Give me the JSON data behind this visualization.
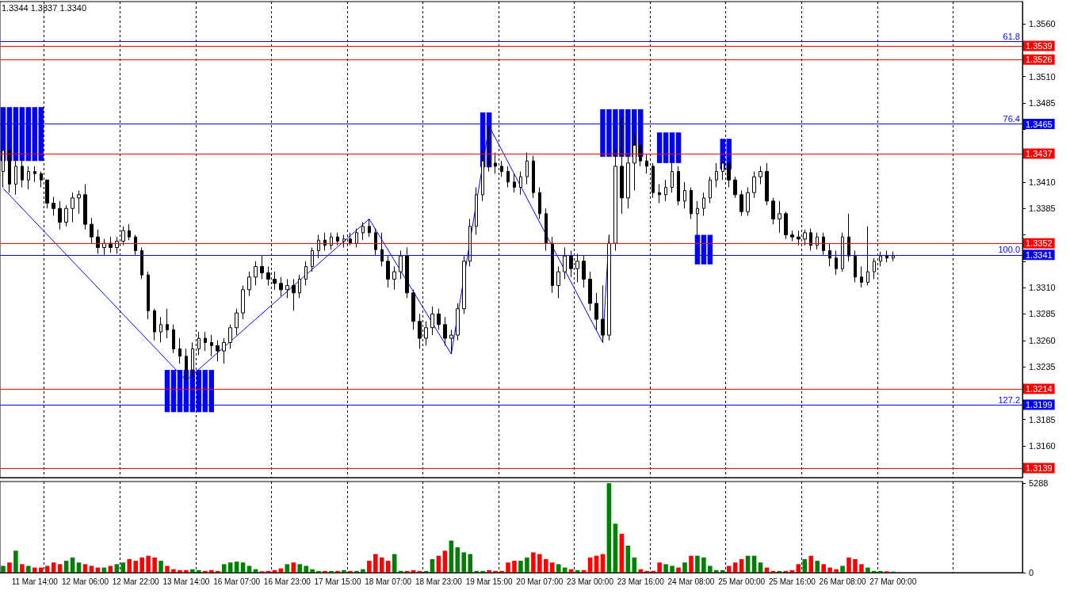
{
  "chart_data": [
    {
      "type": "candlestick",
      "categories": [
        null,
        null,
        null,
        null,
        null,
        null,
        null,
        null,
        null,
        null,
        null,
        null,
        null,
        null,
        null,
        null,
        null,
        null,
        null,
        null,
        null,
        null,
        null,
        null,
        null,
        null,
        null,
        null,
        null,
        null,
        null,
        null,
        null,
        null,
        null,
        null,
        null,
        null,
        null,
        null,
        null,
        null,
        null,
        null,
        null,
        null,
        null,
        null,
        null,
        null,
        null,
        null,
        null,
        null,
        null,
        null,
        null,
        null,
        null,
        null,
        null,
        null,
        null,
        null,
        null,
        null,
        null,
        null,
        null,
        null,
        null,
        null,
        null,
        null,
        null,
        null,
        null,
        null,
        null,
        null,
        null,
        null,
        null,
        null,
        null,
        null,
        null,
        null,
        null,
        null,
        null,
        null,
        null,
        null,
        null,
        null,
        null,
        null,
        null,
        null,
        null,
        null,
        null,
        null,
        null,
        null,
        null,
        null,
        null,
        null,
        null,
        null,
        null,
        null,
        null,
        null,
        null,
        null,
        null,
        null,
        null,
        null,
        null,
        null,
        null,
        null,
        null,
        null,
        null,
        null,
        null,
        null,
        null,
        null,
        null,
        null,
        null,
        null,
        null,
        null,
        null,
        null,
        null,
        null,
        null,
        null,
        null,
        null,
        null,
        null,
        null,
        null,
        null,
        null,
        null,
        null,
        null,
        null,
        null,
        null,
        null,
        null
      ],
      "ylim": [
        1.313,
        1.3581
      ],
      "yticks": [
        {
          "value": 1.3135,
          "label": null
        },
        {
          "value": 1.316,
          "label": "1.3160"
        },
        {
          "value": 1.3185,
          "label": "1.3185"
        },
        {
          "value": 1.321,
          "label": null
        },
        {
          "value": 1.3235,
          "label": "1.3235"
        },
        {
          "value": 1.326,
          "label": "1.3260"
        },
        {
          "value": 1.3285,
          "label": "1.3285"
        },
        {
          "value": 1.331,
          "label": "1.3310"
        },
        {
          "value": 1.3335,
          "label": null
        },
        {
          "value": 1.336,
          "label": null
        },
        {
          "value": 1.3385,
          "label": "1.3385"
        },
        {
          "value": 1.341,
          "label": "1.3410"
        },
        {
          "value": 1.3435,
          "label": null
        },
        {
          "value": 1.346,
          "label": null
        },
        {
          "value": 1.3485,
          "label": "1.3485"
        },
        {
          "value": 1.351,
          "label": "1.3510"
        },
        {
          "value": 1.3535,
          "label": null
        },
        {
          "value": 1.356,
          "label": "1.3560"
        }
      ],
      "tick_labels": "y",
      "grid": "x",
      "annotations": [
        "1.3344 1.3337 1.3340",
        {
          "text": "61.8",
          "y": 1.3543
        },
        {
          "text": "76.4",
          "y": 1.3465
        },
        {
          "text": "100.0",
          "y": 1.3341
        },
        {
          "text": "127.2",
          "y": 1.3199
        }
      ],
      "ref_lines": [
        {
          "axis": "y",
          "value": 1.3543,
          "label": null,
          "color": "#0000ff"
        },
        {
          "axis": "y",
          "value": 1.3539,
          "label": "1.3539",
          "color": "#ff0000"
        },
        {
          "axis": "y",
          "value": 1.3526,
          "label": "1.3526",
          "color": "#ff0000"
        },
        {
          "axis": "y",
          "value": 1.3465,
          "label": "1.3465",
          "color": "#0000ff"
        },
        {
          "axis": "y",
          "value": 1.3437,
          "label": "1.3437",
          "color": "#ff0000"
        },
        {
          "axis": "y",
          "value": 1.3352,
          "label": "1.3352",
          "color": "#ff0000"
        },
        {
          "axis": "y",
          "value": 1.3341,
          "label": "1.3341",
          "color": "#0000ff"
        },
        {
          "axis": "y",
          "value": 1.3214,
          "label": "1.3214",
          "color": "#ff0000"
        },
        {
          "axis": "y",
          "value": 1.3199,
          "label": "1.3199",
          "color": "#0000ff"
        },
        {
          "axis": "y",
          "value": 1.3139,
          "label": "1.3139",
          "color": "#ff0000"
        }
      ],
      "series": [
        {
          "type": "candlestick",
          "color": "#000000",
          "ohlc": [
            [
              1.342,
              1.345,
              1.3405,
              1.344
            ],
            [
              1.344,
              1.3448,
              1.34,
              1.3408
            ],
            [
              1.3408,
              1.343,
              1.3398,
              1.3425
            ],
            [
              1.3425,
              1.3432,
              1.3405,
              1.3412
            ],
            [
              1.3412,
              1.3425,
              1.3403,
              1.342
            ],
            [
              1.342,
              1.3425,
              1.341,
              1.3418
            ],
            [
              1.3418,
              1.342,
              1.3405,
              1.3412
            ],
            [
              1.3412,
              1.3412,
              1.3385,
              1.339
            ],
            [
              1.339,
              1.3396,
              1.3378,
              1.3385
            ],
            [
              1.3385,
              1.3392,
              1.3365,
              1.3372
            ],
            [
              1.3372,
              1.3388,
              1.3368,
              1.3385
            ],
            [
              1.3385,
              1.34,
              1.3372,
              1.3395
            ],
            [
              1.3395,
              1.3402,
              1.338,
              1.3398
            ],
            [
              1.3398,
              1.3408,
              1.3365,
              1.337
            ],
            [
              1.337,
              1.3376,
              1.3352,
              1.3358
            ],
            [
              1.3358,
              1.3365,
              1.3342,
              1.3348
            ],
            [
              1.3348,
              1.3356,
              1.334,
              1.3352
            ],
            [
              1.3352,
              1.3358,
              1.3343,
              1.3348
            ],
            [
              1.3348,
              1.3358,
              1.3342,
              1.3354
            ],
            [
              1.3354,
              1.3368,
              1.335,
              1.3364
            ],
            [
              1.3364,
              1.337,
              1.3355,
              1.3358
            ],
            [
              1.3358,
              1.336,
              1.334,
              1.3345
            ],
            [
              1.3345,
              1.3348,
              1.3318,
              1.3322
            ],
            [
              1.3322,
              1.3325,
              1.328,
              1.3288
            ],
            [
              1.3288,
              1.329,
              1.326,
              1.3268
            ],
            [
              1.3268,
              1.3282,
              1.3258,
              1.3275
            ],
            [
              1.3275,
              1.329,
              1.3262,
              1.327
            ],
            [
              1.327,
              1.3275,
              1.3248,
              1.3252
            ],
            [
              1.3252,
              1.3262,
              1.3238,
              1.3245
            ],
            [
              1.3245,
              1.3252,
              1.3222,
              1.3232
            ],
            [
              1.3232,
              1.3258,
              1.3226,
              1.3252
            ],
            [
              1.3252,
              1.3268,
              1.3246,
              1.3262
            ],
            [
              1.3262,
              1.3268,
              1.325,
              1.3258
            ],
            [
              1.3258,
              1.3265,
              1.3245,
              1.3255
            ],
            [
              1.3255,
              1.326,
              1.324,
              1.325
            ],
            [
              1.325,
              1.3262,
              1.3238,
              1.3258
            ],
            [
              1.3258,
              1.3275,
              1.3252,
              1.3272
            ],
            [
              1.3272,
              1.329,
              1.3265,
              1.3286
            ],
            [
              1.3286,
              1.3312,
              1.328,
              1.3308
            ],
            [
              1.3308,
              1.3325,
              1.3302,
              1.332
            ],
            [
              1.332,
              1.3335,
              1.3312,
              1.333
            ],
            [
              1.333,
              1.334,
              1.3318,
              1.3324
            ],
            [
              1.3324,
              1.333,
              1.3312,
              1.3318
            ],
            [
              1.3318,
              1.3325,
              1.3308,
              1.3314
            ],
            [
              1.3314,
              1.332,
              1.3302,
              1.3308
            ],
            [
              1.3308,
              1.3318,
              1.33,
              1.3312
            ],
            [
              1.3312,
              1.3318,
              1.3288,
              1.3305
            ],
            [
              1.3305,
              1.3322,
              1.33,
              1.3318
            ],
            [
              1.3318,
              1.3335,
              1.3312,
              1.333
            ],
            [
              1.333,
              1.3348,
              1.3325,
              1.3345
            ],
            [
              1.3345,
              1.336,
              1.3338,
              1.3355
            ],
            [
              1.3355,
              1.3362,
              1.3345,
              1.335
            ],
            [
              1.335,
              1.3362,
              1.3346,
              1.3358
            ],
            [
              1.3358,
              1.3362,
              1.335,
              1.3354
            ],
            [
              1.3354,
              1.336,
              1.3348,
              1.3356
            ],
            [
              1.3356,
              1.3362,
              1.335,
              1.3352
            ],
            [
              1.3352,
              1.3366,
              1.3348,
              1.3362
            ],
            [
              1.3362,
              1.3372,
              1.3355,
              1.3368
            ],
            [
              1.3368,
              1.3375,
              1.3358,
              1.3362
            ],
            [
              1.3362,
              1.3366,
              1.334,
              1.3346
            ],
            [
              1.3346,
              1.3362,
              1.333,
              1.3335
            ],
            [
              1.3335,
              1.334,
              1.331,
              1.3318
            ],
            [
              1.3318,
              1.333,
              1.3308,
              1.3325
            ],
            [
              1.3325,
              1.3345,
              1.3318,
              1.334
            ],
            [
              1.334,
              1.3348,
              1.33,
              1.3305
            ],
            [
              1.3305,
              1.3308,
              1.327,
              1.3278
            ],
            [
              1.3278,
              1.3285,
              1.3252,
              1.3262
            ],
            [
              1.3262,
              1.3278,
              1.3255,
              1.3272
            ],
            [
              1.3272,
              1.3292,
              1.3265,
              1.3285
            ],
            [
              1.3285,
              1.329,
              1.327,
              1.3275
            ],
            [
              1.3275,
              1.3282,
              1.3255,
              1.3262
            ],
            [
              1.3262,
              1.327,
              1.3247,
              1.3265
            ],
            [
              1.3265,
              1.3295,
              1.326,
              1.329
            ],
            [
              1.329,
              1.334,
              1.3285,
              1.3335
            ],
            [
              1.3335,
              1.3375,
              1.333,
              1.3368
            ],
            [
              1.3368,
              1.3405,
              1.336,
              1.3398
            ],
            [
              1.3398,
              1.344,
              1.3392,
              1.343
            ],
            [
              1.343,
              1.3463,
              1.342,
              1.3428
            ],
            [
              1.3428,
              1.3438,
              1.3418,
              1.3425
            ],
            [
              1.3425,
              1.343,
              1.3415,
              1.342
            ],
            [
              1.342,
              1.3425,
              1.3405,
              1.341
            ],
            [
              1.341,
              1.3418,
              1.34,
              1.3405
            ],
            [
              1.3405,
              1.342,
              1.3398,
              1.3415
            ],
            [
              1.3415,
              1.3438,
              1.3408,
              1.343
            ],
            [
              1.343,
              1.3435,
              1.3395,
              1.34
            ],
            [
              1.34,
              1.3405,
              1.3375,
              1.338
            ],
            [
              1.338,
              1.3385,
              1.3345,
              1.3352
            ],
            [
              1.3352,
              1.3358,
              1.3305,
              1.3312
            ],
            [
              1.3312,
              1.333,
              1.33,
              1.3325
            ],
            [
              1.3325,
              1.3348,
              1.3318,
              1.334
            ],
            [
              1.334,
              1.3345,
              1.332,
              1.3328
            ],
            [
              1.3328,
              1.3342,
              1.3315,
              1.3335
            ],
            [
              1.3335,
              1.334,
              1.331,
              1.3318
            ],
            [
              1.3318,
              1.3325,
              1.3288,
              1.3295
            ],
            [
              1.3295,
              1.3305,
              1.327,
              1.328
            ],
            [
              1.328,
              1.3312,
              1.3258,
              1.3265
            ],
            [
              1.3265,
              1.336,
              1.326,
              1.3352
            ],
            [
              1.3352,
              1.344,
              1.3345,
              1.3425
            ],
            [
              1.3425,
              1.347,
              1.338,
              1.3395
            ],
            [
              1.3395,
              1.3435,
              1.3385,
              1.3428
            ],
            [
              1.3428,
              1.3455,
              1.3402,
              1.3445
            ],
            [
              1.3445,
              1.345,
              1.3425,
              1.343
            ],
            [
              1.343,
              1.3436,
              1.3418,
              1.3425
            ],
            [
              1.3425,
              1.3428,
              1.3395,
              1.34
            ],
            [
              1.34,
              1.3408,
              1.339,
              1.3398
            ],
            [
              1.3398,
              1.3412,
              1.3392,
              1.3405
            ],
            [
              1.3405,
              1.3445,
              1.34,
              1.342
            ],
            [
              1.342,
              1.3425,
              1.3388,
              1.3392
            ],
            [
              1.3392,
              1.341,
              1.3385,
              1.3402
            ],
            [
              1.3402,
              1.3405,
              1.3375,
              1.338
            ],
            [
              1.338,
              1.3392,
              1.3352,
              1.3385
            ],
            [
              1.3385,
              1.34,
              1.3378,
              1.3395
            ],
            [
              1.3395,
              1.3415,
              1.339,
              1.3412
            ],
            [
              1.3412,
              1.3428,
              1.3405,
              1.342
            ],
            [
              1.342,
              1.3436,
              1.3412,
              1.3428
            ],
            [
              1.3428,
              1.343,
              1.3405,
              1.3412
            ],
            [
              1.3412,
              1.3415,
              1.3395,
              1.3398
            ],
            [
              1.3398,
              1.3402,
              1.3378,
              1.3382
            ],
            [
              1.3382,
              1.3405,
              1.3378,
              1.34
            ],
            [
              1.34,
              1.342,
              1.3395,
              1.3415
            ],
            [
              1.3415,
              1.3425,
              1.3408,
              1.342
            ],
            [
              1.342,
              1.3428,
              1.3388,
              1.3392
            ],
            [
              1.3392,
              1.3395,
              1.337,
              1.3375
            ],
            [
              1.3375,
              1.3392,
              1.3362,
              1.338
            ],
            [
              1.338,
              1.3382,
              1.3356,
              1.336
            ],
            [
              1.336,
              1.3364,
              1.3354,
              1.3358
            ],
            [
              1.3358,
              1.3364,
              1.335,
              1.3356
            ],
            [
              1.3356,
              1.3365,
              1.335,
              1.3362
            ],
            [
              1.3362,
              1.3366,
              1.3345,
              1.335
            ],
            [
              1.335,
              1.3362,
              1.3346,
              1.3358
            ],
            [
              1.3358,
              1.3362,
              1.334,
              1.3345
            ],
            [
              1.3345,
              1.3352,
              1.333,
              1.3338
            ],
            [
              1.3338,
              1.3345,
              1.3322,
              1.3328
            ],
            [
              1.3328,
              1.3362,
              1.3325,
              1.3358
            ],
            [
              1.3358,
              1.338,
              1.3335,
              1.334
            ],
            [
              1.334,
              1.3345,
              1.3315,
              1.332
            ],
            [
              1.332,
              1.333,
              1.331,
              1.3315
            ],
            [
              1.3315,
              1.3368,
              1.3312,
              1.3325
            ],
            [
              1.3325,
              1.3338,
              1.3318,
              1.3335
            ],
            [
              1.3335,
              1.3344,
              1.333,
              1.334
            ],
            [
              1.334,
              1.3345,
              1.3334,
              1.3338
            ],
            [
              1.3338,
              1.3344,
              1.3335,
              1.334
            ],
            null,
            null,
            null,
            null,
            null,
            null,
            null,
            null,
            null,
            null,
            null,
            null,
            null,
            null,
            null,
            null,
            null,
            null,
            null,
            null
          ]
        },
        {
          "type": "bar",
          "color": "#0000ff",
          "values": [
            0.0051,
            0.0051,
            0.0051,
            0.0051,
            0.0051,
            0.0051,
            0.0051,
            null,
            null,
            null,
            null,
            null,
            null,
            null,
            null,
            null,
            null,
            null,
            null,
            null,
            null,
            null,
            null,
            null,
            null,
            null,
            0.004,
            0.004,
            0.004,
            0.004,
            0.004,
            0.004,
            0.004,
            0.004,
            null,
            null,
            null,
            null,
            null,
            null,
            null,
            null,
            null,
            null,
            null,
            null,
            null,
            null,
            null,
            null,
            null,
            null,
            null,
            null,
            null,
            null,
            null,
            null,
            null,
            null,
            null,
            null,
            null,
            null,
            null,
            null,
            null,
            null,
            null,
            null,
            null,
            null,
            null,
            null,
            null,
            null,
            0.0052,
            0.0052,
            null,
            null,
            null,
            null,
            null,
            null,
            null,
            null,
            null,
            null,
            null,
            null,
            null,
            null,
            null,
            null,
            null,
            0.0045,
            0.0045,
            0.0045,
            0.0045,
            0.0045,
            0.0045,
            0.0045,
            null,
            null,
            0.0029,
            0.0029,
            0.0029,
            0.0029,
            null,
            null,
            0.0028,
            0.0028,
            0.0028,
            null,
            0.0029,
            0.0029,
            null,
            null,
            null,
            null,
            null,
            null,
            null,
            null,
            null,
            null,
            null,
            null,
            null,
            null,
            null,
            null,
            null,
            null,
            null,
            null,
            null,
            null,
            null,
            null,
            null,
            null,
            null,
            null,
            null,
            null,
            null,
            null,
            null,
            null,
            null,
            null,
            null,
            null,
            null,
            null,
            null,
            null,
            null,
            null,
            null,
            null
          ],
          "base": [
            1.343,
            1.343,
            1.343,
            1.343,
            1.343,
            1.343,
            1.343,
            null,
            null,
            null,
            null,
            null,
            null,
            null,
            null,
            null,
            null,
            null,
            null,
            null,
            null,
            null,
            null,
            null,
            null,
            null,
            1.3192,
            1.3192,
            1.3192,
            1.3192,
            1.3192,
            1.3192,
            1.3192,
            1.3192,
            null,
            null,
            null,
            null,
            null,
            null,
            null,
            null,
            null,
            null,
            null,
            null,
            null,
            null,
            null,
            null,
            null,
            null,
            null,
            null,
            null,
            null,
            null,
            null,
            null,
            null,
            null,
            null,
            null,
            null,
            null,
            null,
            null,
            null,
            null,
            null,
            null,
            null,
            null,
            null,
            null,
            null,
            1.3424,
            1.3424,
            null,
            null,
            null,
            null,
            null,
            null,
            null,
            null,
            null,
            null,
            null,
            null,
            null,
            null,
            null,
            null,
            null,
            1.3434,
            1.3434,
            1.3434,
            1.3434,
            1.3434,
            1.3434,
            1.3434,
            null,
            null,
            1.3428,
            1.3428,
            1.3428,
            1.3428,
            null,
            null,
            1.3332,
            1.3332,
            1.3332,
            null,
            1.3422,
            1.3422,
            null,
            null,
            null,
            null,
            null,
            null,
            null,
            null,
            null,
            null,
            null,
            null,
            null,
            null,
            null,
            null,
            null,
            null,
            null,
            null,
            null,
            null,
            null,
            null,
            null,
            null,
            null,
            null,
            null,
            null,
            null,
            null,
            null,
            null,
            null,
            null,
            null,
            null,
            null,
            null,
            null,
            null,
            null,
            null,
            null,
            null
          ]
        },
        {
          "type": "line",
          "color": "#0000ff",
          "values": [
            1.3404,
            null,
            null,
            null,
            null,
            null,
            null,
            null,
            null,
            null,
            null,
            null,
            null,
            null,
            null,
            null,
            null,
            null,
            null,
            null,
            null,
            null,
            null,
            null,
            null,
            null,
            null,
            null,
            null,
            1.3222,
            null,
            null,
            null,
            null,
            null,
            null,
            null,
            null,
            null,
            null,
            null,
            null,
            null,
            null,
            null,
            null,
            null,
            null,
            null,
            null,
            null,
            null,
            null,
            null,
            null,
            null,
            null,
            null,
            1.3375,
            null,
            null,
            null,
            null,
            null,
            null,
            null,
            null,
            null,
            null,
            null,
            null,
            1.3247,
            null,
            null,
            null,
            null,
            null,
            1.3463,
            null,
            null,
            null,
            null,
            null,
            null,
            null,
            null,
            null,
            null,
            null,
            null,
            null,
            null,
            null,
            null,
            null,
            1.3258,
            1.336,
            null,
            null,
            null,
            null,
            null,
            null,
            null,
            null,
            null,
            null,
            null,
            null,
            null,
            null,
            null,
            null,
            null,
            null,
            null,
            null,
            null,
            null,
            null,
            null,
            null,
            null,
            null,
            null,
            null,
            null,
            null,
            null,
            null,
            null,
            null,
            null,
            null,
            null,
            null,
            null,
            null,
            null,
            null,
            null,
            null,
            null,
            null,
            null,
            null,
            null,
            null,
            null,
            null,
            null,
            null,
            null,
            null,
            null,
            null,
            null,
            null,
            null,
            null,
            null,
            null
          ]
        }
      ]
    },
    {
      "type": "bar",
      "categories": [
        null,
        null,
        null,
        null,
        null,
        "11 Mar 14:00",
        null,
        null,
        null,
        null,
        null,
        null,
        null,
        "12 Mar 06:00",
        null,
        null,
        null,
        null,
        null,
        null,
        null,
        "12 Mar 22:00",
        null,
        null,
        null,
        null,
        null,
        null,
        null,
        "13 Mar 14:00",
        null,
        null,
        null,
        null,
        null,
        null,
        null,
        "16 Mar 07:00",
        null,
        null,
        null,
        null,
        null,
        null,
        null,
        "16 Mar 23:00",
        null,
        null,
        null,
        null,
        null,
        null,
        null,
        "17 Mar 15:00",
        null,
        null,
        null,
        null,
        null,
        null,
        null,
        "18 Mar 07:00",
        null,
        null,
        null,
        null,
        null,
        null,
        null,
        "18 Mar 23:00",
        null,
        null,
        null,
        null,
        null,
        null,
        null,
        "19 Mar 15:00",
        null,
        null,
        null,
        null,
        null,
        null,
        null,
        "20 Mar 07:00",
        null,
        null,
        null,
        null,
        null,
        null,
        null,
        "23 Mar 00:00",
        null,
        null,
        null,
        null,
        null,
        null,
        null,
        "23 Mar 16:00",
        null,
        null,
        null,
        null,
        null,
        null,
        null,
        "24 Mar 08:00",
        null,
        null,
        null,
        null,
        null,
        null,
        null,
        "25 Mar 00:00",
        null,
        null,
        null,
        null,
        null,
        null,
        null,
        "25 Mar 16:00",
        null,
        null,
        null,
        null,
        null,
        null,
        null,
        "26 Mar 08:00",
        null,
        null,
        null,
        null,
        null,
        null,
        null,
        "27 Mar 00:00",
        null,
        null,
        null,
        null,
        null,
        null,
        null,
        null,
        null,
        null,
        null,
        null,
        null,
        null,
        null,
        null,
        null,
        null,
        null,
        null
      ],
      "values": [
        400,
        600,
        1300,
        500,
        400,
        300,
        300,
        400,
        600,
        500,
        700,
        900,
        600,
        500,
        400,
        300,
        300,
        400,
        500,
        600,
        800,
        700,
        900,
        1000,
        900,
        700,
        400,
        200,
        150,
        150,
        200,
        150,
        100,
        150,
        100,
        500,
        600,
        650,
        600,
        400,
        200,
        80,
        100,
        150,
        250,
        500,
        600,
        500,
        400,
        200,
        100,
        100,
        100,
        100,
        150,
        100,
        100,
        200,
        700,
        1100,
        900,
        700,
        1100,
        100,
        100,
        150,
        100,
        100,
        800,
        1000,
        1300,
        1900,
        1500,
        1200,
        1100,
        100,
        100,
        150,
        100,
        100,
        600,
        700,
        700,
        900,
        1200,
        1100,
        800,
        600,
        500,
        300,
        200,
        150,
        150,
        900,
        1000,
        1100,
        5300,
        2900,
        2300,
        1600,
        900,
        200,
        100,
        100,
        600,
        500,
        400,
        300,
        600,
        1000,
        1000,
        900,
        400,
        150,
        150,
        400,
        600,
        800,
        1000,
        1000,
        600,
        300,
        100,
        100,
        100,
        150,
        500,
        800,
        1000,
        700,
        500,
        300,
        200,
        400,
        900,
        800,
        500,
        300,
        100,
        100,
        80,
        60,
        null,
        null,
        null,
        null,
        null,
        null,
        null,
        null,
        null,
        null,
        null,
        null,
        null,
        null,
        null,
        null,
        null,
        null,
        null,
        null
      ],
      "colors": [
        "#008000",
        "#ff0000",
        "#008000",
        "#ff0000",
        "#008000",
        "#ff0000",
        "#ff0000",
        "#ff0000",
        "#ff0000",
        "#ff0000",
        "#008000",
        "#008000",
        "#008000",
        "#ff0000",
        "#ff0000",
        "#ff0000",
        "#008000",
        "#ff0000",
        "#008000",
        "#008000",
        "#ff0000",
        "#ff0000",
        "#ff0000",
        "#ff0000",
        "#ff0000",
        "#008000",
        "#ff0000",
        "#ff0000",
        "#ff0000",
        "#ff0000",
        "#008000",
        "#008000",
        "#ff0000",
        "#ff0000",
        "#ff0000",
        "#008000",
        "#008000",
        "#008000",
        "#008000",
        "#008000",
        "#008000",
        "#ff0000",
        "#ff0000",
        "#ff0000",
        "#ff0000",
        "#008000",
        "#ff0000",
        "#008000",
        "#008000",
        "#008000",
        "#008000",
        "#ff0000",
        "#008000",
        "#ff0000",
        "#008000",
        "#ff0000",
        "#008000",
        "#008000",
        "#ff0000",
        "#ff0000",
        "#ff0000",
        "#ff0000",
        "#008000",
        "#008000",
        "#ff0000",
        "#ff0000",
        "#ff0000",
        "#008000",
        "#008000",
        "#ff0000",
        "#ff0000",
        "#008000",
        "#008000",
        "#008000",
        "#008000",
        "#008000",
        "#008000",
        "#ff0000",
        "#ff0000",
        "#ff0000",
        "#ff0000",
        "#ff0000",
        "#008000",
        "#008000",
        "#ff0000",
        "#ff0000",
        "#ff0000",
        "#ff0000",
        "#008000",
        "#008000",
        "#ff0000",
        "#008000",
        "#ff0000",
        "#ff0000",
        "#ff0000",
        "#ff0000",
        "#008000",
        "#008000",
        "#ff0000",
        "#008000",
        "#008000",
        "#ff0000",
        "#ff0000",
        "#ff0000",
        "#ff0000",
        "#008000",
        "#008000",
        "#ff0000",
        "#008000",
        "#ff0000",
        "#008000",
        "#008000",
        "#008000",
        "#008000",
        "#008000",
        "#ff0000",
        "#ff0000",
        "#ff0000",
        "#008000",
        "#008000",
        "#008000",
        "#ff0000",
        "#ff0000",
        "#008000",
        "#ff0000",
        "#ff0000",
        "#ff0000",
        "#008000",
        "#ff0000",
        "#008000",
        "#ff0000",
        "#ff0000",
        "#ff0000",
        "#008000",
        "#ff0000",
        "#ff0000",
        "#ff0000",
        "#008000",
        "#008000",
        "#008000",
        "#ff0000",
        "#008000",
        null,
        null,
        null,
        null,
        null,
        null,
        null,
        null,
        null,
        null,
        null,
        null,
        null,
        null,
        null,
        null,
        null,
        null,
        null,
        null
      ],
      "ylim": [
        0,
        5400
      ],
      "yticks": [
        0,
        5288
      ],
      "grid": "x"
    }
  ]
}
